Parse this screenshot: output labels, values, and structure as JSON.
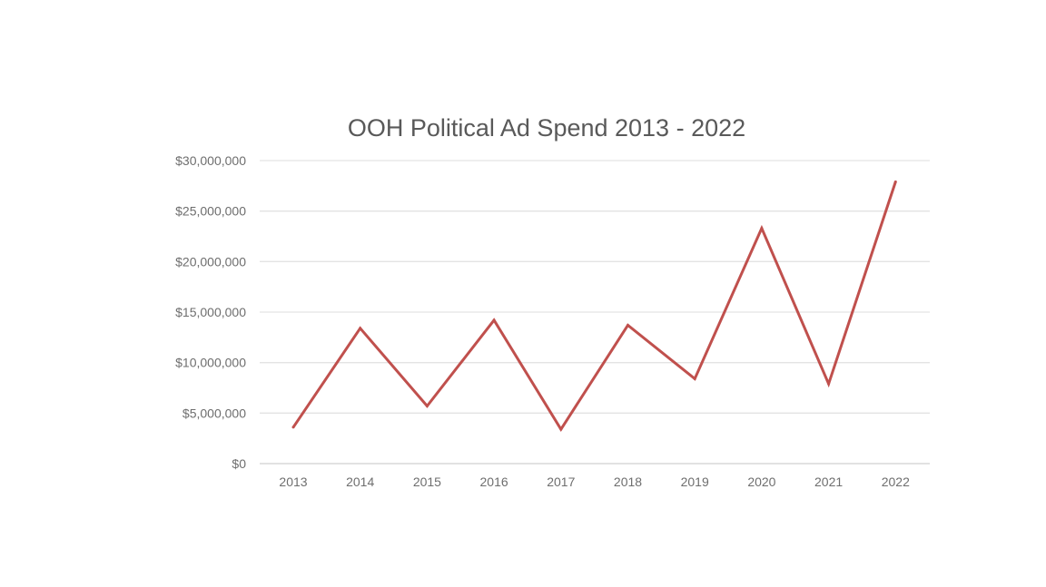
{
  "chart_data": {
    "type": "line",
    "title": "OOH Political Ad Spend 2013 - 2022",
    "xlabel": "",
    "ylabel": "",
    "categories": [
      "2013",
      "2014",
      "2015",
      "2016",
      "2017",
      "2018",
      "2019",
      "2020",
      "2021",
      "2022"
    ],
    "values": [
      3600000,
      13400000,
      5700000,
      14200000,
      3400000,
      13700000,
      8400000,
      23300000,
      7900000,
      27900000
    ],
    "ylim": [
      0,
      30000000
    ],
    "yticks": [
      0,
      5000000,
      10000000,
      15000000,
      20000000,
      25000000,
      30000000
    ],
    "ytick_labels": [
      "$0",
      "$5,000,000",
      "$10,000,000",
      "$15,000,000",
      "$20,000,000",
      "$25,000,000",
      "$30,000,000"
    ],
    "grid": true,
    "legend": "none",
    "line_color": "#c0504d"
  }
}
